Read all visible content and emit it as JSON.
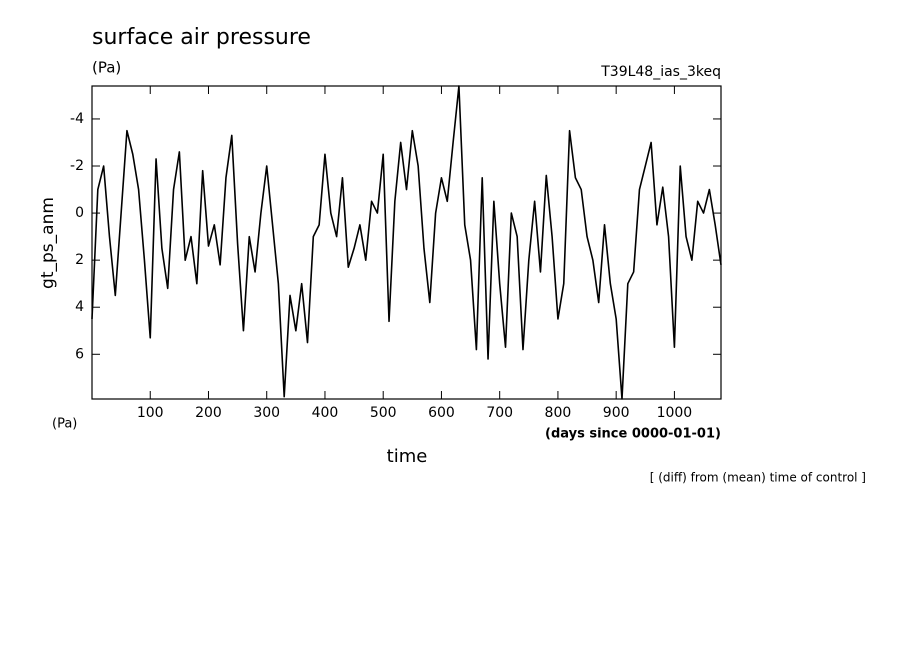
{
  "chart_data": {
    "type": "line",
    "title": "surface air pressure",
    "units": "(Pa)",
    "run_label": "T39L48_ias_3keq",
    "y_label": "gt_ps_anm",
    "y_units": "(Pa)",
    "x_label": "time",
    "x_units": "(days since 0000-01-01)",
    "note": "[ (diff) from (mean) time of control ]",
    "x": [
      0,
      10,
      20,
      30,
      40,
      50,
      60,
      70,
      80,
      90,
      100,
      110,
      120,
      130,
      140,
      150,
      160,
      170,
      180,
      190,
      200,
      210,
      220,
      230,
      240,
      250,
      260,
      270,
      280,
      290,
      300,
      310,
      320,
      330,
      340,
      350,
      360,
      370,
      380,
      390,
      400,
      410,
      420,
      430,
      440,
      450,
      460,
      470,
      480,
      490,
      500,
      510,
      520,
      530,
      540,
      550,
      560,
      570,
      580,
      590,
      600,
      610,
      620,
      630,
      640,
      650,
      660,
      670,
      680,
      690,
      700,
      710,
      720,
      730,
      740,
      750,
      760,
      770,
      780,
      790,
      800,
      810,
      820,
      830,
      840,
      850,
      860,
      870,
      880,
      890,
      900,
      910,
      920,
      930,
      940,
      950,
      960,
      970,
      980,
      990,
      1000,
      1010,
      1020,
      1030,
      1040,
      1050,
      1060,
      1070,
      1080
    ],
    "series": [
      {
        "color": "#000000",
        "values": [
          4.5,
          -1,
          -2,
          1,
          3.5,
          0,
          -3.5,
          -2.5,
          -1,
          2,
          5.3,
          -2.3,
          1.5,
          3.2,
          -1,
          -2.6,
          2,
          1,
          3,
          -1.8,
          1.4,
          0.5,
          2.2,
          -1.5,
          -3.3,
          1.3,
          5,
          1,
          2.5,
          0,
          -2,
          0.5,
          3,
          7.8,
          3.5,
          5,
          3,
          5.5,
          1,
          0.5,
          -2.5,
          0,
          1,
          -1.5,
          2.3,
          1.5,
          0.5,
          2,
          -0.5,
          0,
          -2.5,
          4.6,
          -0.5,
          -3,
          -1,
          -3.5,
          -2,
          1.5,
          3.8,
          0,
          -1.5,
          -0.5,
          -3,
          -5.4,
          0.5,
          2,
          5.8,
          -1.5,
          6.2,
          -0.5,
          3,
          5.7,
          0,
          1,
          5.8,
          2,
          -0.5,
          2.5,
          -1.6,
          1,
          4.5,
          3,
          -3.5,
          -1.5,
          -1,
          1,
          2,
          3.8,
          0.5,
          3,
          4.5,
          7.9,
          3,
          2.5,
          -1,
          -2,
          -3,
          0.5,
          -1.1,
          1,
          5.7,
          -2,
          1,
          2,
          -0.5,
          0,
          -1,
          0.5,
          2.2
        ]
      }
    ],
    "xlim": [
      0,
      1080
    ],
    "ylim": [
      -5.4,
      7.9
    ],
    "y_reversed": true,
    "xticks": [
      100,
      200,
      300,
      400,
      500,
      600,
      700,
      800,
      900,
      1000
    ],
    "yticks": [
      -4,
      -2,
      0,
      2,
      4,
      6
    ]
  }
}
